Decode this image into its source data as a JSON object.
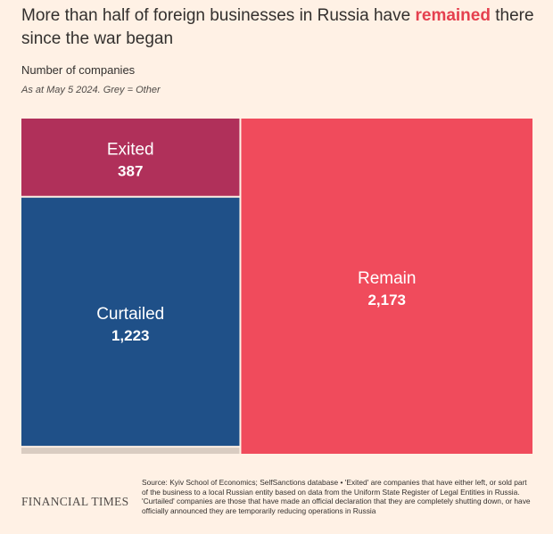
{
  "title": {
    "before": "More than half of foreign businesses in Russia have ",
    "highlight": "remained",
    "after": " there since the war began"
  },
  "subtitle": "Number of companies",
  "note": "As at May 5 2024. Grey = Other",
  "colors": {
    "background": "#fff1e5",
    "exited": "#b0305a",
    "curtailed": "#1f5088",
    "remain": "#f04b5c",
    "other": "#d9ccc1",
    "highlight": "#e5404f"
  },
  "chart_data": {
    "type": "treemap",
    "title": "More than half of foreign businesses in Russia have remained there since the war began",
    "subtitle": "Number of companies",
    "note": "As at May 5 2024. Grey = Other",
    "categories": [
      "Exited",
      "Curtailed",
      "Other",
      "Remain"
    ],
    "values": [
      387,
      1223,
      30,
      2173
    ],
    "labels": [
      "387",
      "1,223",
      "",
      "2,173"
    ],
    "label_shown": [
      true,
      true,
      false,
      true
    ]
  },
  "footer": {
    "logo": "FINANCIAL TIMES",
    "source": "Source: Kyiv School of Economics; SelfSanctions database • 'Exited' are companies that have either left, or sold part of the business to a local Russian entity based on data from the Uniform State Register of Legal Entities in Russia. 'Curtailed' companies are those that have made an official declaration that they are completely shutting down, or have officially announced they are temporarily reducing operations in Russia"
  }
}
